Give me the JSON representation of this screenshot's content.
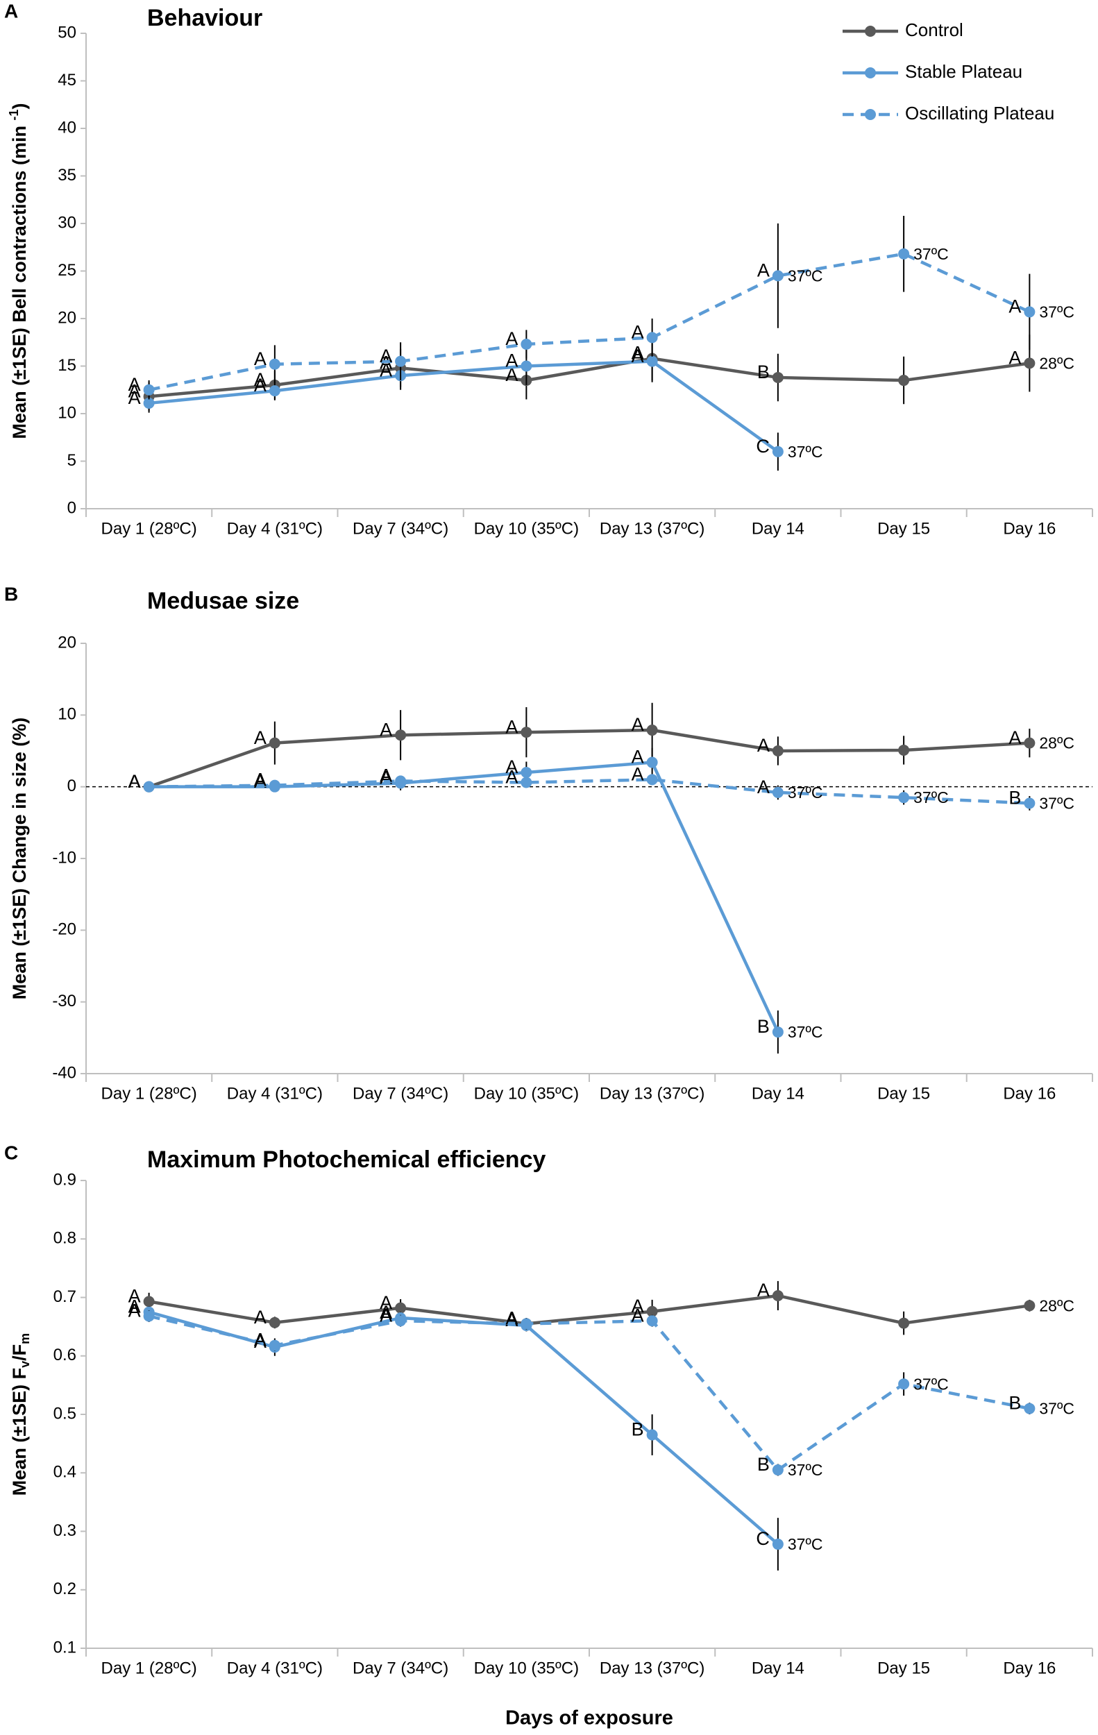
{
  "chart_data": [
    {
      "type": "line",
      "panel": "A",
      "title": "Behaviour",
      "ylabel": [
        {
          "text": "Mean (±1SE) Bell contractions (min ",
          "shift": "none"
        },
        {
          "text": "-1",
          "shift": "super"
        },
        {
          "text": ")",
          "shift": "none"
        }
      ],
      "categories": [
        "Day 1 (28ºC)",
        "Day 4 (31ºC)",
        "Day 7 (34ºC)",
        "Day 10 (35ºC)",
        "Day 13 (37ºC)",
        "Day 14",
        "Day 15",
        "Day 16"
      ],
      "ylim": [
        0,
        50
      ],
      "yticks": [
        0,
        5,
        10,
        15,
        20,
        25,
        30,
        35,
        40,
        45,
        50
      ],
      "legend": "upper right",
      "series": [
        {
          "name": "Control",
          "color": "#595959",
          "dash": false,
          "values": [
            11.8,
            13.0,
            14.8,
            13.5,
            15.8,
            13.8,
            13.5,
            15.3
          ],
          "errors": [
            1.5,
            1.5,
            2.0,
            2.0,
            2.5,
            2.5,
            2.5,
            3.0
          ],
          "letters": [
            "A",
            "A",
            "A",
            "A",
            "A",
            "B",
            null,
            "A"
          ],
          "point_labels": [
            null,
            null,
            null,
            null,
            null,
            null,
            null,
            "28ºC"
          ]
        },
        {
          "name": "Stable Plateau",
          "color": "#5b9bd5",
          "dash": false,
          "values": [
            11.1,
            12.4,
            14.0,
            15.0,
            15.5,
            6.0,
            null,
            null
          ],
          "errors": [
            1.0,
            1.0,
            1.5,
            2.0,
            2.0,
            2.0,
            null,
            null
          ],
          "letters": [
            "A",
            "A",
            "A",
            "A",
            "A",
            "C",
            null,
            null
          ],
          "point_labels": [
            null,
            null,
            null,
            null,
            null,
            "37ºC",
            null,
            null
          ]
        },
        {
          "name": "Oscillating Plateau",
          "color": "#5b9bd5",
          "dash": true,
          "values": [
            12.5,
            15.2,
            15.5,
            17.3,
            18.0,
            24.5,
            26.8,
            20.7
          ],
          "errors": [
            1.0,
            2.0,
            2.0,
            1.5,
            2.0,
            5.5,
            4.0,
            4.0
          ],
          "letters": [
            "A",
            "A",
            "A",
            "A",
            "A",
            "A",
            null,
            "A"
          ],
          "point_labels": [
            null,
            null,
            null,
            null,
            null,
            "37ºC",
            "37ºC",
            "37ºC"
          ]
        }
      ]
    },
    {
      "type": "line",
      "panel": "B",
      "title": "Medusae size",
      "ylabel": [
        {
          "text": "Mean (±1SE) Change in size (%)",
          "shift": "none"
        }
      ],
      "categories": [
        "Day 1 (28ºC)",
        "Day 4 (31ºC)",
        "Day 7 (34ºC)",
        "Day 10 (35ºC)",
        "Day 13 (37ºC)",
        "Day 14",
        "Day 15",
        "Day 16"
      ],
      "ylim": [
        -40,
        20
      ],
      "yticks": [
        -40,
        -30,
        -20,
        -10,
        0,
        10,
        20
      ],
      "reference_line": 0,
      "series": [
        {
          "color": "#595959",
          "dash": false,
          "values": [
            0,
            6.1,
            7.2,
            7.6,
            7.9,
            5.0,
            5.1,
            6.1
          ],
          "errors": [
            0.5,
            3.0,
            3.5,
            3.5,
            3.8,
            2.0,
            2.0,
            2.0
          ],
          "letters": [
            "A",
            "A",
            "A",
            "A",
            "A",
            "A",
            null,
            "A"
          ],
          "point_labels": [
            null,
            null,
            null,
            null,
            null,
            null,
            null,
            "28ºC"
          ]
        },
        {
          "color": "#5b9bd5",
          "dash": false,
          "values": [
            0,
            0,
            0.5,
            2.0,
            3.4,
            -34.2,
            null,
            null
          ],
          "errors": [
            0.3,
            0.5,
            1.0,
            1.5,
            2.0,
            3.0,
            null,
            null
          ],
          "letters": [
            "A",
            "A",
            "A",
            "A",
            "A",
            "B",
            null,
            null
          ],
          "point_labels": [
            null,
            null,
            null,
            null,
            null,
            "37ºC",
            null,
            null
          ]
        },
        {
          "color": "#5b9bd5",
          "dash": true,
          "values": [
            0,
            0.2,
            0.8,
            0.6,
            1.0,
            -0.8,
            -1.5,
            -2.3
          ],
          "errors": [
            0.3,
            0.5,
            0.5,
            0.5,
            0.5,
            1.0,
            1.0,
            1.0
          ],
          "letters": [
            "A",
            "A",
            "A",
            "A",
            "A",
            "A",
            null,
            "B"
          ],
          "point_labels": [
            null,
            null,
            null,
            null,
            null,
            "37ºC",
            "37ºC",
            "37ºC"
          ]
        }
      ]
    },
    {
      "type": "line",
      "panel": "C",
      "title": "Maximum Photochemical efficiency",
      "ylabel": [
        {
          "text": "Mean (±1SE)  F",
          "shift": "none"
        },
        {
          "text": "v",
          "shift": "sub"
        },
        {
          "text": "/F",
          "shift": "none"
        },
        {
          "text": "m",
          "shift": "sub"
        }
      ],
      "categories": [
        "Day 1 (28ºC)",
        "Day 4 (31ºC)",
        "Day 7 (34ºC)",
        "Day 10 (35ºC)",
        "Day 13 (37ºC)",
        "Day 14",
        "Day 15",
        "Day 16"
      ],
      "ylim": [
        0.1,
        0.9
      ],
      "yticks": [
        0.1,
        0.2,
        0.3,
        0.4,
        0.5,
        0.6,
        0.7,
        0.8,
        0.9
      ],
      "xlabel": "Days of exposure",
      "series": [
        {
          "color": "#595959",
          "dash": false,
          "values": [
            0.693,
            0.657,
            0.682,
            0.655,
            0.676,
            0.703,
            0.656,
            0.686
          ],
          "errors": [
            0.015,
            0.01,
            0.015,
            0.01,
            0.02,
            0.025,
            0.02,
            0.01
          ],
          "letters": [
            "A",
            "A",
            "A",
            "A",
            "A",
            "A",
            null,
            null
          ],
          "point_labels": [
            null,
            null,
            null,
            null,
            null,
            null,
            null,
            "28ºC"
          ]
        },
        {
          "color": "#5b9bd5",
          "dash": false,
          "values": [
            0.675,
            0.615,
            0.665,
            0.652,
            0.465,
            0.278,
            null,
            null
          ],
          "errors": [
            0.01,
            0.015,
            0.01,
            0.01,
            0.035,
            0.045,
            null,
            null
          ],
          "letters": [
            "A",
            "A",
            "A",
            "A",
            "B",
            "C",
            null,
            null
          ],
          "point_labels": [
            null,
            null,
            null,
            null,
            null,
            "37ºC",
            null,
            null
          ]
        },
        {
          "color": "#5b9bd5",
          "dash": true,
          "values": [
            0.668,
            0.618,
            0.66,
            0.655,
            0.66,
            0.405,
            0.552,
            0.51
          ],
          "errors": [
            0.01,
            0.01,
            0.01,
            0.01,
            0.01,
            0.01,
            0.02,
            0.01
          ],
          "letters": [
            "A",
            "A",
            "A",
            "A",
            "A",
            "B",
            null,
            "B"
          ],
          "point_labels": [
            null,
            null,
            null,
            null,
            null,
            "37ºC",
            "37ºC",
            "37ºC"
          ]
        }
      ]
    }
  ]
}
